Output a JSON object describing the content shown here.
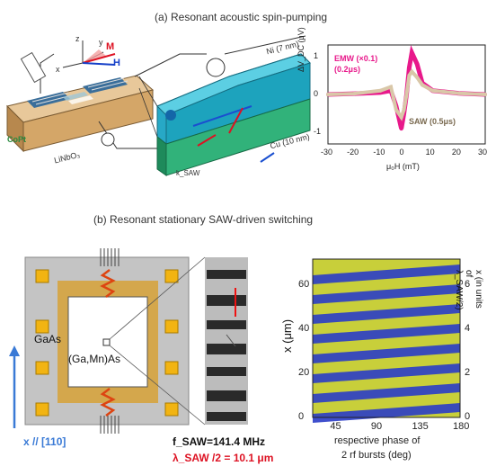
{
  "panel_a": {
    "title": "(a) Resonant acoustic spin-pumping",
    "device_labels": {
      "v_tdc": "V_TDC",
      "idt": "V_IDT",
      "thickness_a": "Ni (7 nm)",
      "thickness_b": "Cu (10 nm)",
      "substrate": "LiNbO₃",
      "cofe": "CoPt",
      "M": "M",
      "H": "H",
      "x": "x",
      "y": "y",
      "z": "z",
      "vl": "V_L",
      "k": "k_SAW"
    },
    "plot": {
      "ylabel": "ΔV_DC (μV)",
      "xlabel": "μ₀H (mT)",
      "xticks": [
        "-30",
        "-20",
        "-10",
        "0",
        "10",
        "20",
        "30"
      ],
      "yticks": [
        "1",
        "0",
        "-1"
      ],
      "legend_emw": "EMW (×0.1)",
      "legend_emw2": "(0.2μs)",
      "legend_saw": "SAW (0.5μs)",
      "emw_color": "#e8198b",
      "saw_color": "#d9c7a8"
    }
  },
  "panel_b": {
    "title": "(b) Resonant stationary SAW-driven switching",
    "gaas_label": "GaAs",
    "gamnas_label": "(Ga,Mn)As",
    "direction_label": "x // [110]",
    "freq_label": "f_SAW=141.4 MHz",
    "lambda_label": "λ_SAW /2 = 10.1 μm",
    "plot": {
      "ylabel_left": "x (μm)",
      "ylabel_right": "x (in units of λ_SAW/2)",
      "xlabel_1": "respective phase of",
      "xlabel_2": "2 rf bursts (deg)",
      "xticks": [
        "45",
        "90",
        "135",
        "180"
      ],
      "yticks_left": [
        "0",
        "20",
        "40",
        "60"
      ],
      "yticks_right": [
        "0",
        "2",
        "4",
        "6"
      ],
      "color_a": "#2a3cc8",
      "color_b": "#c8cf3a"
    }
  },
  "chart_data": {
    "type": "line",
    "xlabel": "μ₀H (mT)",
    "ylabel": "ΔV_DC (μV)",
    "xlim": [
      -30,
      30
    ],
    "ylim": [
      -1.3,
      1.3
    ],
    "x": [
      -30,
      -20,
      -10,
      -6,
      -4,
      -2,
      -1,
      0,
      1,
      2,
      4,
      6,
      10,
      20,
      30
    ],
    "series": [
      {
        "name": "EMW (×0.1) (0.2μs)",
        "values": [
          0,
          0.02,
          0.05,
          0.1,
          -0.3,
          -0.9,
          -0.5,
          0.0,
          0.7,
          1.1,
          0.8,
          0.3,
          0.1,
          0.03,
          0
        ]
      },
      {
        "name": "SAW (0.5μs)",
        "values": [
          0,
          0.02,
          0.1,
          0.2,
          -0.4,
          -0.6,
          -0.4,
          0.0,
          0.5,
          0.6,
          0.45,
          0.25,
          0.1,
          0.03,
          0
        ]
      }
    ]
  }
}
